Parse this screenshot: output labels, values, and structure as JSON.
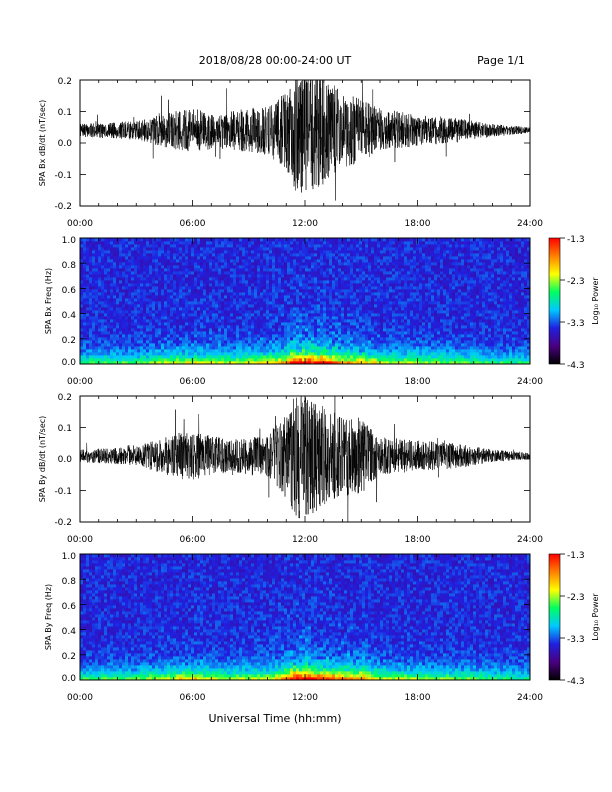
{
  "header": {
    "title": "2018/08/28   00:00-24:00 UT",
    "page": "Page 1/1"
  },
  "x_axis_label": "Universal Time (hh:mm)",
  "colorscale": {
    "colors": [
      "#000000",
      "#4a0080",
      "#2020e0",
      "#00c8ff",
      "#00ff60",
      "#ffff00",
      "#ff8000",
      "#ff0000"
    ]
  },
  "chart_data": [
    {
      "type": "line",
      "ylabel": "SPA Bx dB/dt (nT/sec)",
      "xlim": [
        "00:00",
        "24:00"
      ],
      "ylim": [
        -0.2,
        0.2
      ],
      "xticks": [
        "00:00",
        "06:00",
        "12:00",
        "18:00",
        "24:00"
      ],
      "yticks": [
        "0.2",
        "0.1",
        "0.0",
        "-0.1",
        "-0.2"
      ],
      "envelope": {
        "hours": [
          0,
          3,
          5,
          6,
          8,
          10,
          11,
          11.5,
          12,
          13,
          14,
          15,
          16,
          18,
          20,
          22,
          24
        ],
        "amplitude": [
          0.02,
          0.03,
          0.06,
          0.07,
          0.06,
          0.08,
          0.12,
          0.2,
          0.2,
          0.18,
          0.12,
          0.1,
          0.07,
          0.05,
          0.04,
          0.02,
          0.01
        ]
      },
      "baseline": 0.04
    },
    {
      "type": "heatmap",
      "ylabel": "SPA Bx Freq (Hz)",
      "xlim": [
        "00:00",
        "24:00"
      ],
      "ylim": [
        0.0,
        1.0
      ],
      "xticks": [
        "00:00",
        "06:00",
        "12:00",
        "18:00",
        "24:00"
      ],
      "yticks": [
        "1.0",
        "0.8",
        "0.6",
        "0.4",
        "0.2",
        "0.0"
      ],
      "colorbar": {
        "ticks": [
          "-1.3",
          "-2.3",
          "-3.3",
          "-4.3"
        ],
        "label": "Log₁₀ Power",
        "range": [
          -4.3,
          -1.3
        ]
      }
    },
    {
      "type": "line",
      "ylabel": "SPA By dB/dt (nT/sec)",
      "xlim": [
        "00:00",
        "24:00"
      ],
      "ylim": [
        -0.2,
        0.2
      ],
      "xticks": [
        "00:00",
        "06:00",
        "12:00",
        "18:00",
        "24:00"
      ],
      "yticks": [
        "0.2",
        "0.1",
        "0.0",
        "-0.1",
        "-0.2"
      ],
      "envelope": {
        "hours": [
          0,
          3,
          5,
          6,
          8,
          10,
          11,
          11.5,
          12,
          13,
          14,
          15,
          16,
          18,
          20,
          22,
          24
        ],
        "amplitude": [
          0.02,
          0.03,
          0.07,
          0.08,
          0.05,
          0.07,
          0.13,
          0.2,
          0.2,
          0.16,
          0.13,
          0.12,
          0.06,
          0.05,
          0.04,
          0.02,
          0.01
        ]
      },
      "baseline": 0.01
    },
    {
      "type": "heatmap",
      "ylabel": "SPA By Freq (Hz)",
      "xlim": [
        "00:00",
        "24:00"
      ],
      "ylim": [
        0.0,
        1.0
      ],
      "xticks": [
        "00:00",
        "06:00",
        "12:00",
        "18:00",
        "24:00"
      ],
      "yticks": [
        "1.0",
        "0.8",
        "0.6",
        "0.4",
        "0.2",
        "0.0"
      ],
      "colorbar": {
        "ticks": [
          "-1.3",
          "-2.3",
          "-3.3",
          "-4.3"
        ],
        "label": "Log₁₀ Power",
        "range": [
          -4.3,
          -1.3
        ]
      }
    }
  ]
}
